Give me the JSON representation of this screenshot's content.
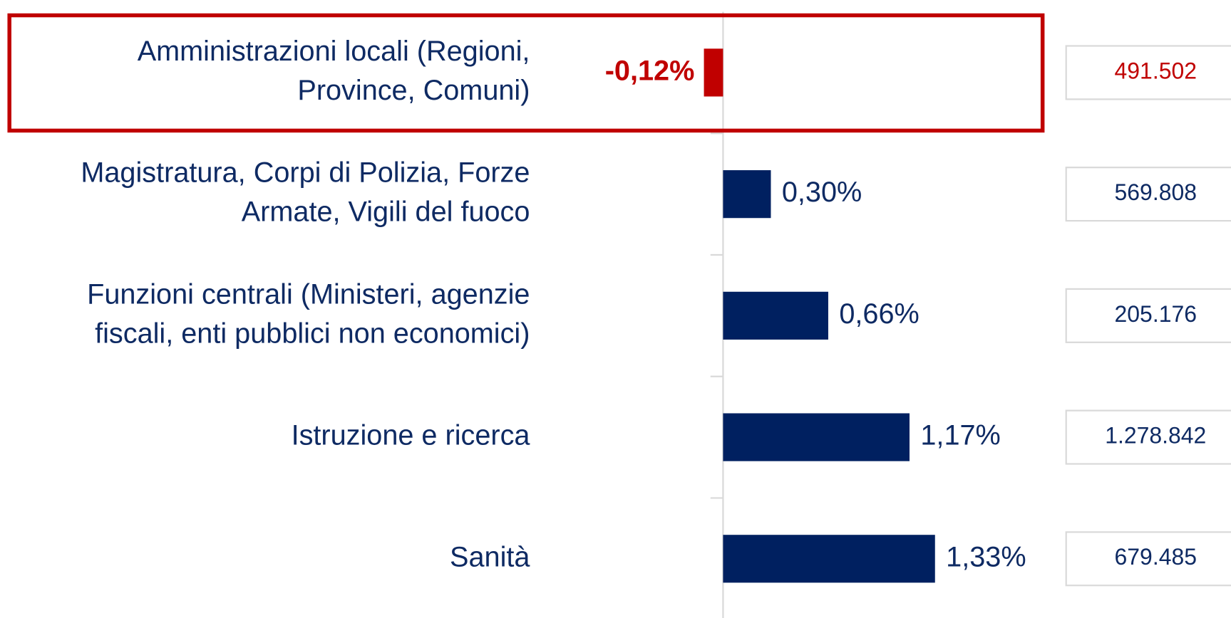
{
  "chart_data": {
    "type": "bar",
    "orientation": "horizontal",
    "categories": [
      [
        "Amministrazioni locali (Regioni,",
        "Province, Comuni)"
      ],
      [
        "Magistratura, Corpi di Polizia, Forze",
        "Armate, Vigili del fuoco"
      ],
      [
        "Funzioni centrali (Ministeri, agenzie",
        "fiscali, enti pubblici non economici)"
      ],
      [
        "Istruzione e ricerca"
      ],
      [
        "Sanità"
      ]
    ],
    "values": [
      -0.12,
      0.3,
      0.66,
      1.17,
      1.33
    ],
    "value_labels": [
      "-0,12%",
      "0,30%",
      "0,66%",
      "1,17%",
      "1,33%"
    ],
    "color": "#002060",
    "highlight": 0,
    "highlight_color": "#c00000",
    "totals": {
      "values": [
        491502,
        569808,
        205176,
        1278842,
        679485
      ],
      "value_labels": [
        "491.502",
        "569.808",
        "205.176",
        "1.278.842",
        "679.485"
      ]
    }
  }
}
